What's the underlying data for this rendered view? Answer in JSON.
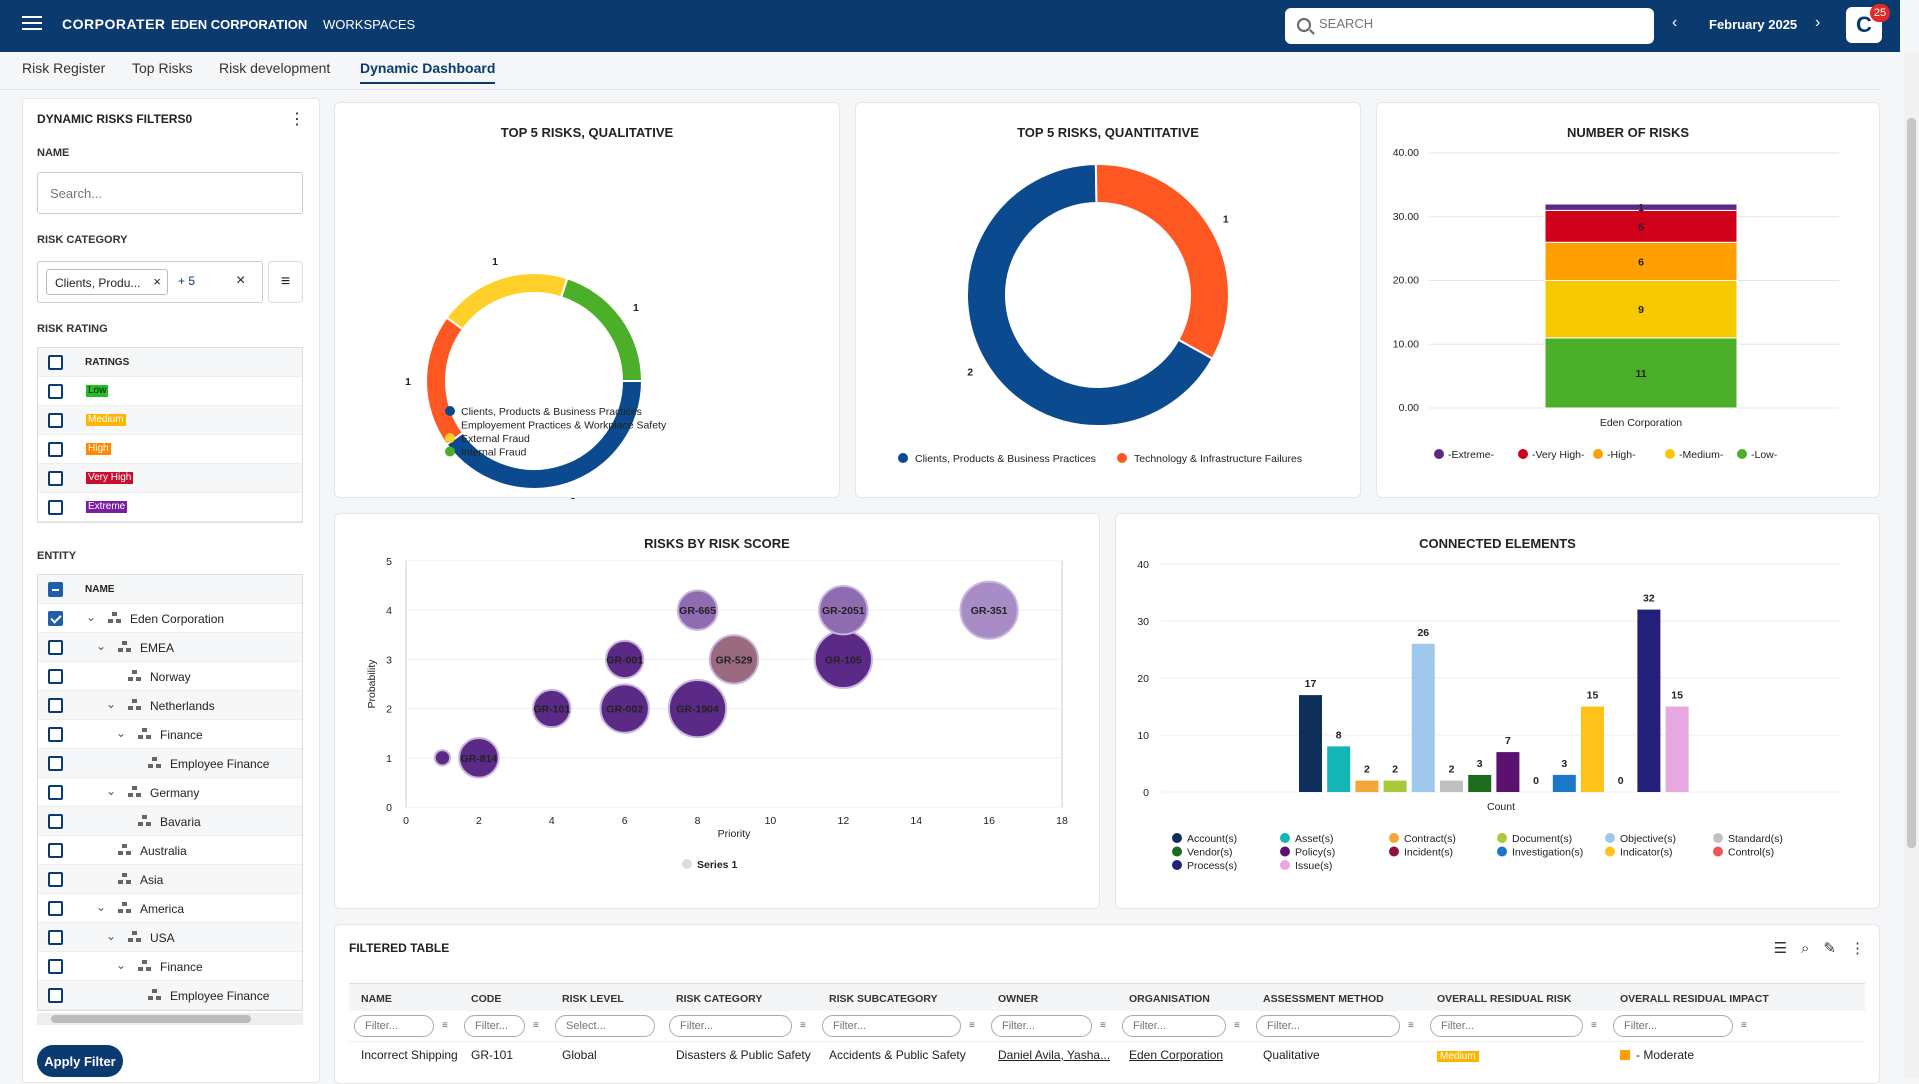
{
  "header": {
    "logo": "CORPORATER",
    "nav1": "EDEN CORPORATION",
    "nav2": "WORKSPACES",
    "search_placeholder": "SEARCH",
    "date": "February 2025",
    "avatar": "C",
    "badge": "25",
    "prev": "‹",
    "next": "›"
  },
  "tabs": [
    {
      "label": "Risk Register"
    },
    {
      "label": "Top Risks"
    },
    {
      "label": "Risk development"
    },
    {
      "label": "Dynamic Dashboard",
      "active": true
    }
  ],
  "filters": {
    "title": "DYNAMIC RISKS FILTERS0",
    "name_label": "NAME",
    "name_placeholder": "Search...",
    "category_label": "RISK CATEGORY",
    "chip": "Clients, Produ...",
    "chip_more": "+ 5",
    "rating_label": "RISK RATING",
    "ratings_header": "RATINGS",
    "ratings": [
      {
        "label": "Low",
        "color": "#22c022",
        "text": "#111"
      },
      {
        "label": "Medium",
        "color": "#ffb400",
        "text": "#fff"
      },
      {
        "label": "High",
        "color": "#ff8a00",
        "text": "#fff"
      },
      {
        "label": "Very High",
        "color": "#c8102e",
        "text": "#fff"
      },
      {
        "label": "Extreme",
        "color": "#7a1fa2",
        "text": "#fff"
      }
    ],
    "entity_label": "ENTITY",
    "entity_header": "NAME",
    "entities": [
      {
        "label": "Eden Corporation",
        "level": 0,
        "chevron": true,
        "checked": true
      },
      {
        "label": "EMEA",
        "level": 1,
        "chevron": true
      },
      {
        "label": "Norway",
        "level": 2,
        "chevron": false
      },
      {
        "label": "Netherlands",
        "level": 2,
        "chevron": true
      },
      {
        "label": "Finance",
        "level": 3,
        "chevron": true
      },
      {
        "label": "Employee Finance",
        "level": 4,
        "chevron": false
      },
      {
        "label": "Germany",
        "level": 2,
        "chevron": true
      },
      {
        "label": "Bavaria",
        "level": 3,
        "chevron": false
      },
      {
        "label": "Australia",
        "level": 1,
        "chevron": false
      },
      {
        "label": "Asia",
        "level": 1,
        "chevron": false
      },
      {
        "label": "America",
        "level": 1,
        "chevron": true
      },
      {
        "label": "USA",
        "level": 2,
        "chevron": true
      },
      {
        "label": "Finance",
        "level": 3,
        "chevron": true
      },
      {
        "label": "Employee Finance",
        "level": 4,
        "chevron": false
      }
    ],
    "apply_label": "Apply Filter"
  },
  "charts": {
    "qual": {
      "title": "TOP 5 RISKS, QUALITATIVE"
    },
    "quant": {
      "title": "TOP 5 RISKS, QUANTITATIVE"
    },
    "num": {
      "title": "NUMBER OF RISKS"
    },
    "score": {
      "title": "RISKS BY RISK SCORE"
    },
    "conn": {
      "title": "CONNECTED ELEMENTS"
    }
  },
  "chart_data": [
    {
      "type": "pie",
      "id": "qual",
      "title": "TOP 5 RISKS, QUALITATIVE",
      "donut": true,
      "slices": [
        {
          "name": "Clients, Products & Business Practices",
          "value": 2,
          "color": "#0b4a8f"
        },
        {
          "name": "Employement Practices & Workplace Safety",
          "value": 1,
          "color": "#ff5722"
        },
        {
          "name": "External Fraud",
          "value": 1,
          "color": "#ffd02a"
        },
        {
          "name": "Internal Fraud",
          "value": 1,
          "color": "#4caf2a"
        }
      ],
      "legend": "bottom"
    },
    {
      "type": "pie",
      "id": "quant",
      "title": "TOP 5 RISKS, QUANTITATIVE",
      "donut": true,
      "slices": [
        {
          "name": "Clients, Products & Business Practices",
          "value": 2,
          "color": "#0b4a8f"
        },
        {
          "name": "Technology & Infrastructure Failures",
          "value": 1,
          "color": "#ff5722"
        }
      ],
      "legend": "bottom"
    },
    {
      "type": "bar",
      "id": "num",
      "title": "NUMBER OF RISKS",
      "stacked": true,
      "categories": [
        "Eden Corporation"
      ],
      "series": [
        {
          "name": "-Low-",
          "values": [
            11
          ],
          "color": "#4caf2a"
        },
        {
          "name": "-Medium-",
          "values": [
            9
          ],
          "color": "#f5c800"
        },
        {
          "name": "-High-",
          "values": [
            6
          ],
          "color": "#ffa000"
        },
        {
          "name": "-Very High-",
          "values": [
            5
          ],
          "color": "#d0021b"
        },
        {
          "name": "-Extreme-",
          "values": [
            1
          ],
          "color": "#5b2a86"
        }
      ],
      "ylim": [
        0,
        40
      ],
      "yticks": [
        "0.00",
        "10.00",
        "20.00",
        "30.00",
        "40.00"
      ],
      "legend": "bottom"
    },
    {
      "type": "scatter",
      "id": "score",
      "title": "RISKS BY RISK SCORE",
      "xlabel": "Priority",
      "ylabel": "Probability",
      "xlim": [
        0,
        18
      ],
      "ylim": [
        0,
        5
      ],
      "xticks": [
        0,
        2,
        4,
        6,
        8,
        10,
        12,
        14,
        16,
        18
      ],
      "yticks": [
        0,
        1,
        2,
        3,
        4,
        5
      ],
      "points": [
        {
          "x": 1,
          "y": 1,
          "label": "",
          "color": "#5b2a86",
          "r": 0.35
        },
        {
          "x": 2,
          "y": 1,
          "label": "GR-814",
          "color": "#5b2a86",
          "r": 0.9
        },
        {
          "x": 4,
          "y": 2,
          "label": "GR-101",
          "color": "#5b2a86",
          "r": 0.85
        },
        {
          "x": 6,
          "y": 2,
          "label": "GR-002",
          "color": "#5b2a86",
          "r": 1.1
        },
        {
          "x": 8,
          "y": 2,
          "label": "GR-1904",
          "color": "#5b2a86",
          "r": 1.3
        },
        {
          "x": 6,
          "y": 3,
          "label": "GR-001",
          "color": "#5b2a86",
          "r": 0.85
        },
        {
          "x": 9,
          "y": 3,
          "label": "GR-529",
          "color": "#9a6a7e",
          "r": 1.1
        },
        {
          "x": 12,
          "y": 3,
          "label": "GR-105",
          "color": "#5b2a86",
          "r": 1.3
        },
        {
          "x": 8,
          "y": 4,
          "label": "GR-665",
          "color": "#8f6cb0",
          "r": 0.9
        },
        {
          "x": 12,
          "y": 4,
          "label": "GR-2051",
          "color": "#8f6cb0",
          "r": 1.1
        },
        {
          "x": 16,
          "y": 4,
          "label": "GR-351",
          "color": "#a88cc6",
          "r": 1.3
        }
      ],
      "series": [
        {
          "name": "Series 1"
        }
      ]
    },
    {
      "type": "bar",
      "id": "conn",
      "title": "CONNECTED ELEMENTS",
      "xlabel": "Count",
      "ylim": [
        0,
        40
      ],
      "yticks": [
        0,
        10,
        20,
        30,
        40
      ],
      "series": [
        {
          "name": "Account(s)",
          "value": 17,
          "color": "#0d2f5a"
        },
        {
          "name": "Asset(s)",
          "value": 8,
          "color": "#13b5b5"
        },
        {
          "name": "Contract(s)",
          "value": 2,
          "color": "#f4a63a"
        },
        {
          "name": "Document(s)",
          "value": 2,
          "color": "#a8c93a"
        },
        {
          "name": "Objective(s)",
          "value": 26,
          "color": "#9ec8ec"
        },
        {
          "name": "Standard(s)",
          "value": 2,
          "color": "#c0c0c0"
        },
        {
          "name": "Vendor(s)",
          "value": 3,
          "color": "#1d6b1d"
        },
        {
          "name": "Policy(s)",
          "value": 7,
          "color": "#5c1070"
        },
        {
          "name": "Incident(s)",
          "value": 0,
          "color": "#8a1535"
        },
        {
          "name": "Investigation(s)",
          "value": 3,
          "color": "#1b78c8"
        },
        {
          "name": "Indicator(s)",
          "value": 15,
          "color": "#ffc21a"
        },
        {
          "name": "Control(s)",
          "value": 0,
          "color": "#f05454"
        },
        {
          "name": "Process(s)",
          "value": 32,
          "color": "#22207a"
        },
        {
          "name": "Issue(s)",
          "value": 15,
          "color": "#e7a7e0"
        }
      ],
      "legend": "bottom"
    }
  ],
  "table": {
    "title": "FILTERED TABLE",
    "columns": [
      "NAME",
      "CODE",
      "RISK LEVEL",
      "RISK CATEGORY",
      "RISK SUBCATEGORY",
      "OWNER",
      "ORGANISATION",
      "ASSESSMENT METHOD",
      "OVERALL RESIDUAL RISK",
      "OVERALL RESIDUAL IMPACT"
    ],
    "filter_placeholder": "Filter...",
    "select_placeholder": "Select...",
    "row": {
      "name": "Incorrect Shipping",
      "code": "GR-101",
      "level": "Global",
      "category": "Disasters & Public Safety",
      "subcategory": "Accidents & Public Safety",
      "owner": "Daniel Avila, Yasha...",
      "org": "Eden Corporation",
      "method": "Qualitative",
      "risk": "Medium",
      "impact": "- Moderate"
    }
  }
}
